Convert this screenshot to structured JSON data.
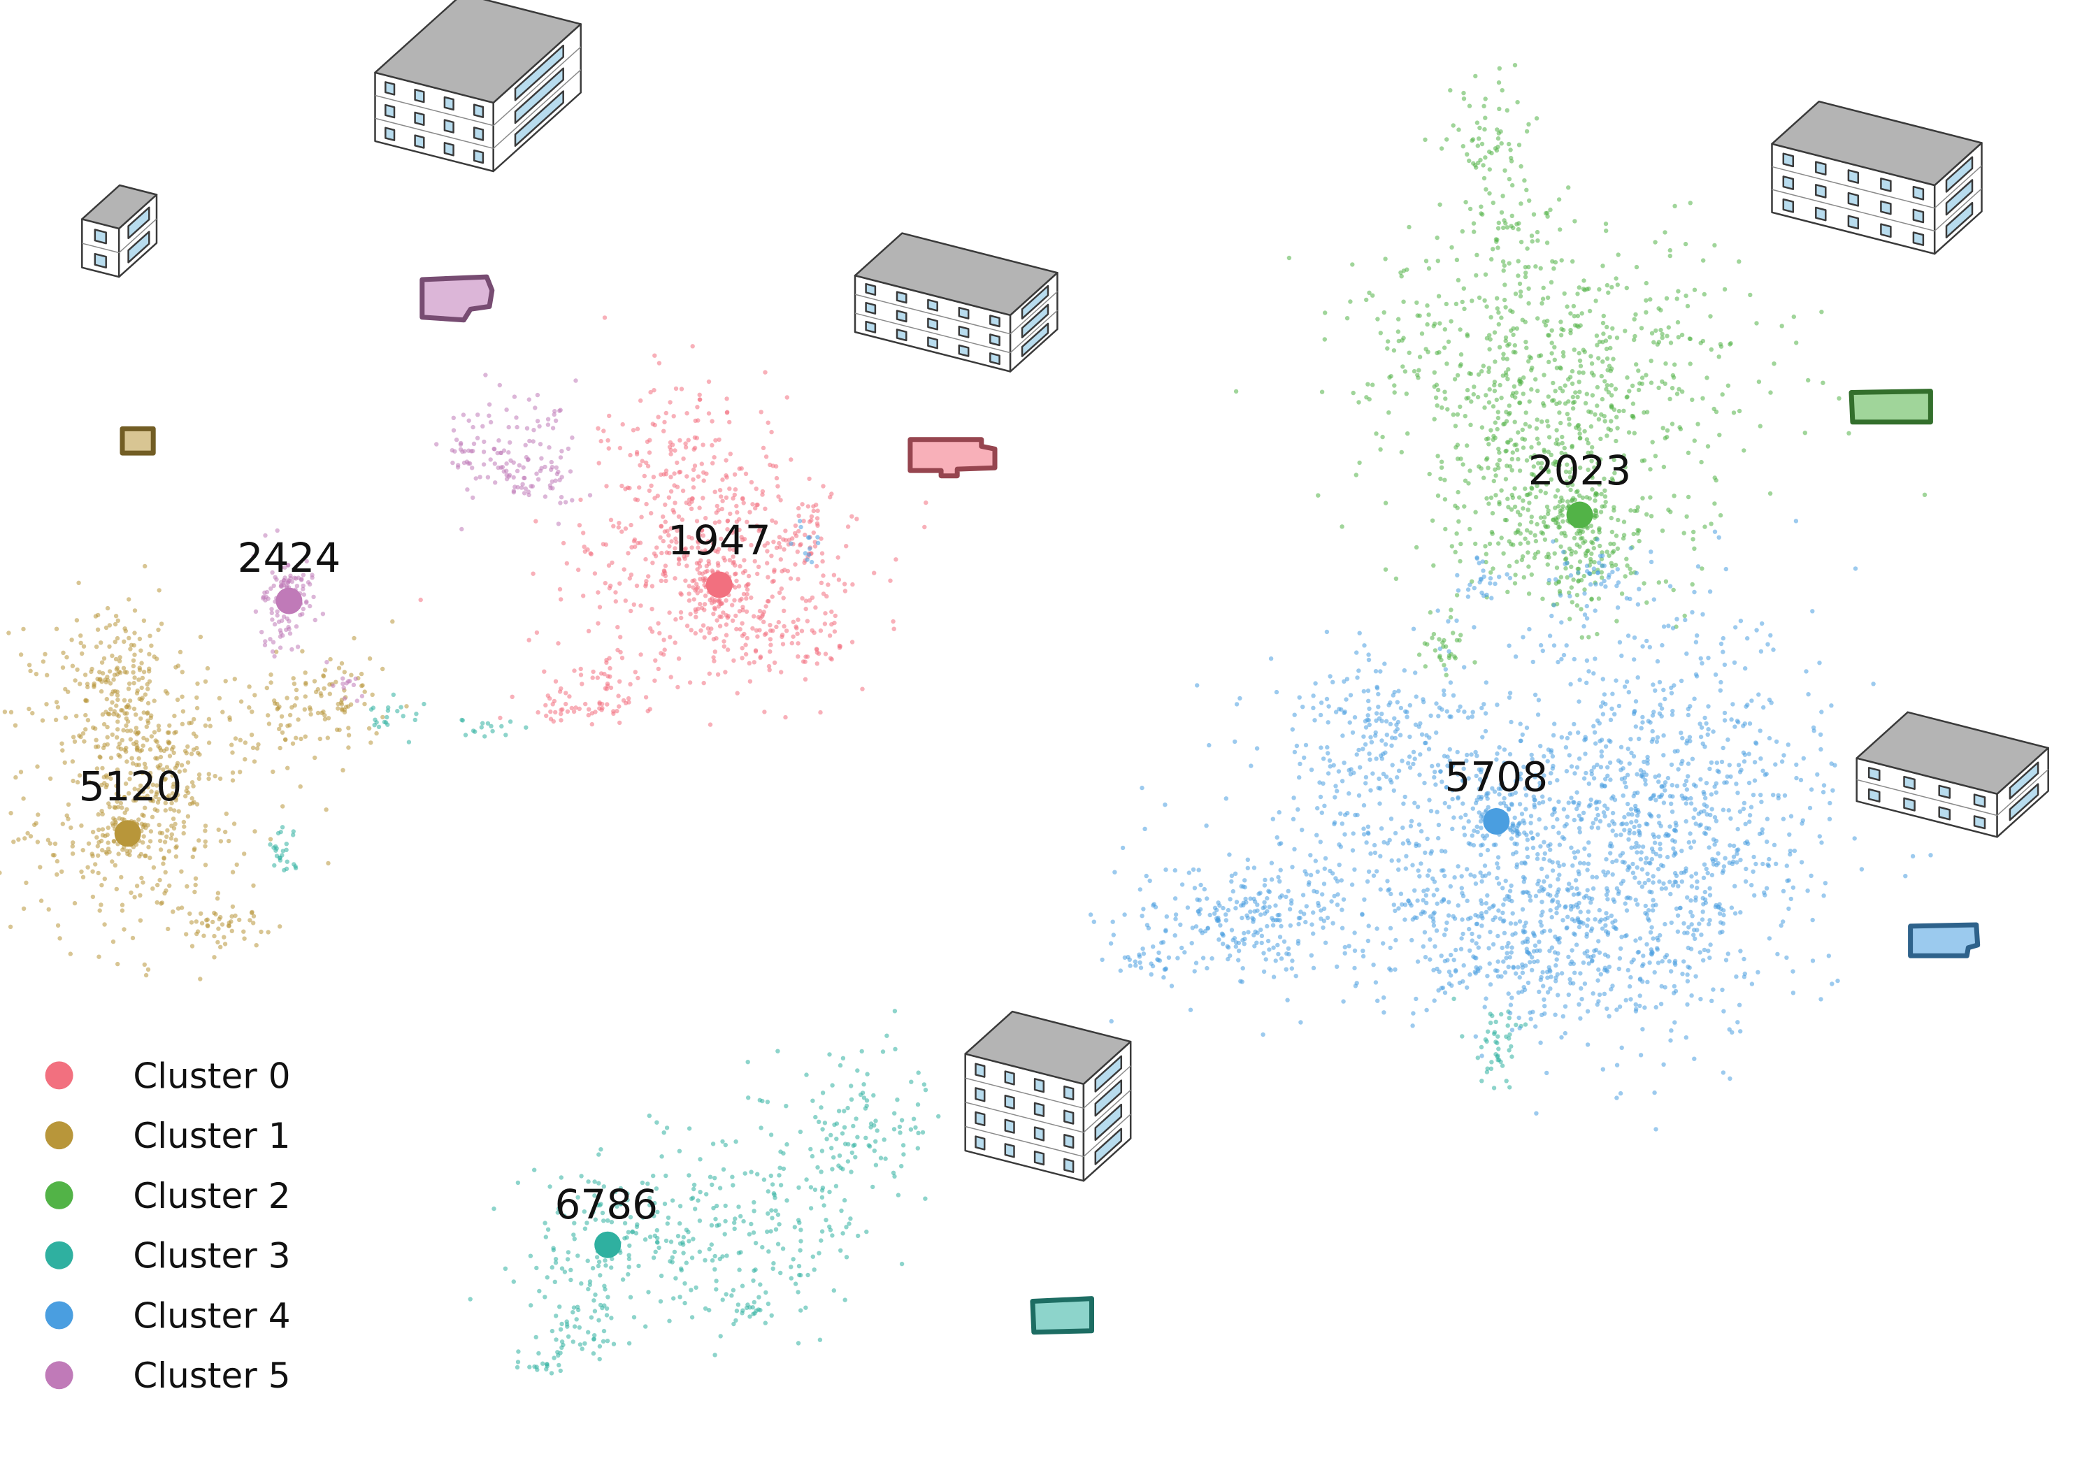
{
  "chart_data": {
    "type": "scatter",
    "title": "",
    "xlabel": "",
    "ylabel": "",
    "grid": false,
    "axes_visible": false,
    "legend_position": "bottom-left",
    "colors": {
      "Cluster 0": "#f2707f",
      "Cluster 1": "#b8963a",
      "Cluster 2": "#52b347",
      "Cluster 3": "#2fb0a0",
      "Cluster 4": "#4a9ee0",
      "Cluster 5": "#c07ab8"
    },
    "series": [
      {
        "name": "Cluster 0",
        "count": 1947,
        "centroid_label": "1947",
        "footprint_shape": "notched-rectangle",
        "building": "three-storey wide block with recessed wing"
      },
      {
        "name": "Cluster 1",
        "count": 5120,
        "centroid_label": "5120",
        "footprint_shape": "small square",
        "building": "two-storey small block"
      },
      {
        "name": "Cluster 2",
        "count": 2023,
        "centroid_label": "2023",
        "footprint_shape": "long rectangle",
        "building": "three-storey long slab"
      },
      {
        "name": "Cluster 3",
        "count": 6786,
        "centroid_label": "6786",
        "footprint_shape": "rectangle",
        "building": "four-storey block"
      },
      {
        "name": "Cluster 4",
        "count": 5708,
        "centroid_label": "5708",
        "footprint_shape": "notched rectangle",
        "building": "two-storey block with step"
      },
      {
        "name": "Cluster 5",
        "count": 2424,
        "centroid_label": "2424",
        "footprint_shape": "irregular rectangle",
        "building": "three-storey block with wing"
      }
    ],
    "legend": [
      "Cluster 0",
      "Cluster 1",
      "Cluster 2",
      "Cluster 3",
      "Cluster 4",
      "Cluster 5"
    ]
  }
}
